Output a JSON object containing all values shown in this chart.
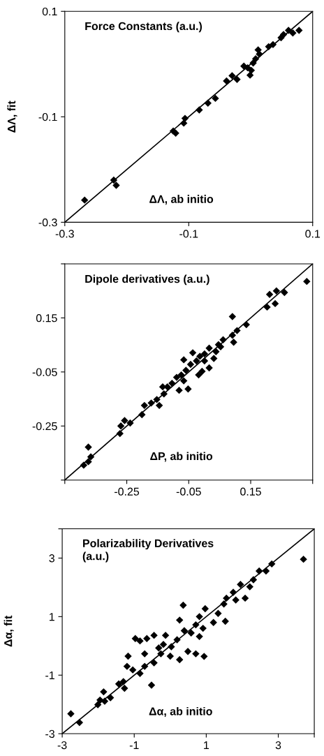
{
  "chart_data": [
    {
      "type": "scatter",
      "title": "Force Constants (a.u.)",
      "xlabel": "ΔΛ, ab initio",
      "ylabel": "ΔΛ, fit",
      "xlim": [
        -0.3,
        0.1
      ],
      "ylim": [
        -0.3,
        0.1
      ],
      "xticks": [
        -0.3,
        -0.1,
        0.1
      ],
      "yticks": [
        -0.3,
        -0.1,
        0.1
      ],
      "grid": false,
      "legend": false,
      "series": [
        {
          "type": "line",
          "color": "#000000",
          "marker": "none",
          "line_style": "solid",
          "x": [
            -0.3,
            0.1
          ],
          "values": [
            -0.3,
            0.1
          ]
        },
        {
          "color": "#000000",
          "marker": "diamond",
          "x": [
            -0.268,
            -0.221,
            -0.217,
            -0.125,
            -0.121,
            -0.108,
            -0.106,
            -0.083,
            -0.069,
            -0.057,
            -0.039,
            -0.03,
            -0.022,
            -0.011,
            -0.005,
            -0.001,
            0.001,
            0.004,
            0.008,
            0.012,
            0.014,
            0.029,
            0.036,
            0.049,
            0.053,
            0.061,
            0.068,
            0.078
          ],
          "values": [
            -0.258,
            -0.22,
            -0.23,
            -0.127,
            -0.131,
            -0.112,
            -0.103,
            -0.087,
            -0.074,
            -0.065,
            -0.032,
            -0.022,
            -0.029,
            -0.004,
            -0.007,
            -0.021,
            -0.012,
            0.002,
            0.01,
            0.027,
            0.019,
            0.033,
            0.037,
            0.05,
            0.056,
            0.064,
            0.059,
            0.064
          ]
        }
      ]
    },
    {
      "type": "scatter",
      "title": "Dipole derivatives (a.u.)",
      "xlabel": "ΔP, ab initio",
      "xlim": [
        -0.45,
        0.35
      ],
      "ylim": [
        -0.45,
        0.35
      ],
      "xticks": [
        {
          "value": -0.45,
          "label": null
        },
        -0.25,
        -0.05,
        0.15,
        {
          "value": 0.35,
          "label": null
        }
      ],
      "yticks": [
        {
          "value": -0.45,
          "label": null
        },
        -0.25,
        -0.05,
        0.15,
        {
          "value": 0.35,
          "label": null
        }
      ],
      "grid": false,
      "legend": false,
      "series": [
        {
          "type": "line",
          "color": "#000000",
          "marker": "none",
          "line_style": "solid",
          "x": [
            -0.45,
            0.35
          ],
          "values": [
            -0.45,
            0.35
          ]
        },
        {
          "color": "#000000",
          "marker": "diamond",
          "x": [
            0.331,
            0.211,
            0.233,
            0.259,
            0.203,
            0.229,
            0.091,
            0.136,
            0.106,
            0.091,
            0.095,
            0.061,
            0.046,
            0.038,
            0.016,
            0.001,
            -0.014,
            -0.037,
            -0.066,
            -0.025,
            -0.044,
            0.016,
            -0.007,
            -0.018,
            -0.059,
            -0.074,
            -0.052,
            -0.081,
            -0.066,
            -0.089,
            -0.104,
            -0.119,
            -0.134,
            -0.13,
            -0.153,
            -0.171,
            -0.193,
            -0.145,
            -0.201,
            -0.239,
            -0.257,
            -0.269,
            -0.272,
            -0.374,
            -0.366,
            -0.374,
            -0.389,
            0.001,
            0.031,
            0.053
          ],
          "values": [
            0.285,
            0.237,
            0.25,
            0.244,
            0.19,
            0.203,
            0.155,
            0.125,
            0.103,
            0.086,
            0.06,
            0.069,
            0.051,
            0.025,
            0.038,
            0.017,
            0.008,
            0.021,
            -0.005,
            -0.009,
            -0.022,
            -0.035,
            -0.048,
            -0.061,
            -0.044,
            -0.061,
            -0.113,
            -0.118,
            -0.083,
            -0.07,
            -0.092,
            -0.105,
            -0.105,
            -0.131,
            -0.152,
            -0.165,
            -0.174,
            -0.174,
            -0.208,
            -0.239,
            -0.23,
            -0.25,
            -0.278,
            -0.328,
            -0.364,
            -0.382,
            -0.395,
            -0.009,
            0.0,
            0.043
          ]
        }
      ]
    },
    {
      "type": "scatter",
      "title": "Polarizability Derivatives\n(a.u.)",
      "xlabel": "Δα, ab initio",
      "ylabel": "Δα, fit",
      "xlim": [
        -3,
        4
      ],
      "ylim": [
        -3,
        4
      ],
      "xticks": [
        -3,
        -1,
        1,
        3,
        {
          "value": 4,
          "label": null
        }
      ],
      "yticks": [
        -3,
        -1,
        1,
        3,
        {
          "value": 4,
          "label": null
        }
      ],
      "grid": false,
      "legend": false,
      "series": [
        {
          "type": "line",
          "color": "#000000",
          "marker": "none",
          "line_style": "solid",
          "x": [
            -3,
            4
          ],
          "values": [
            -3,
            4
          ]
        },
        {
          "color": "#000000",
          "marker": "diamond",
          "x": [
            3.7,
            2.82,
            2.47,
            2.66,
            2.31,
            2.21,
            1.95,
            1.75,
            2.08,
            1.82,
            1.56,
            1.49,
            1.33,
            1.53,
            1.2,
            0.97,
            0.81,
            0.91,
            0.71,
            0.81,
            0.58,
            0.36,
            0.26,
            0.39,
            0.19,
            0.03,
            0.26,
            0.49,
            0.71,
            0.94,
            -0.13,
            -0.19,
            0.0,
            -0.26,
            -0.45,
            -0.65,
            -0.84,
            -0.45,
            -0.71,
            -0.84,
            -0.52,
            -0.97,
            -1.17,
            -1.2,
            -1.04,
            -1.3,
            -1.43,
            -1.27,
            -1.85,
            -1.66,
            -1.82,
            -2.01,
            -1.95,
            -2.76,
            -2.52,
            -0.71,
            -0.32
          ],
          "values": [
            2.96,
            2.8,
            2.56,
            2.56,
            2.26,
            2.02,
            2.1,
            1.83,
            1.63,
            1.57,
            1.63,
            1.43,
            1.11,
            0.84,
            0.8,
            1.27,
            1.0,
            0.6,
            0.72,
            0.32,
            0.44,
            1.39,
            0.88,
            0.52,
            0.21,
            -0.03,
            -0.47,
            -0.19,
            -0.27,
            -0.36,
            0.36,
            0.05,
            -0.35,
            -0.27,
            0.36,
            0.25,
            0.17,
            -0.58,
            -0.7,
            -0.94,
            -1.34,
            0.25,
            -0.35,
            -0.7,
            -0.82,
            -1.22,
            -1.3,
            -1.45,
            -1.57,
            -1.77,
            -1.89,
            -2.01,
            -1.85,
            -2.32,
            -2.62,
            -0.27,
            -0.07
          ]
        }
      ]
    }
  ]
}
